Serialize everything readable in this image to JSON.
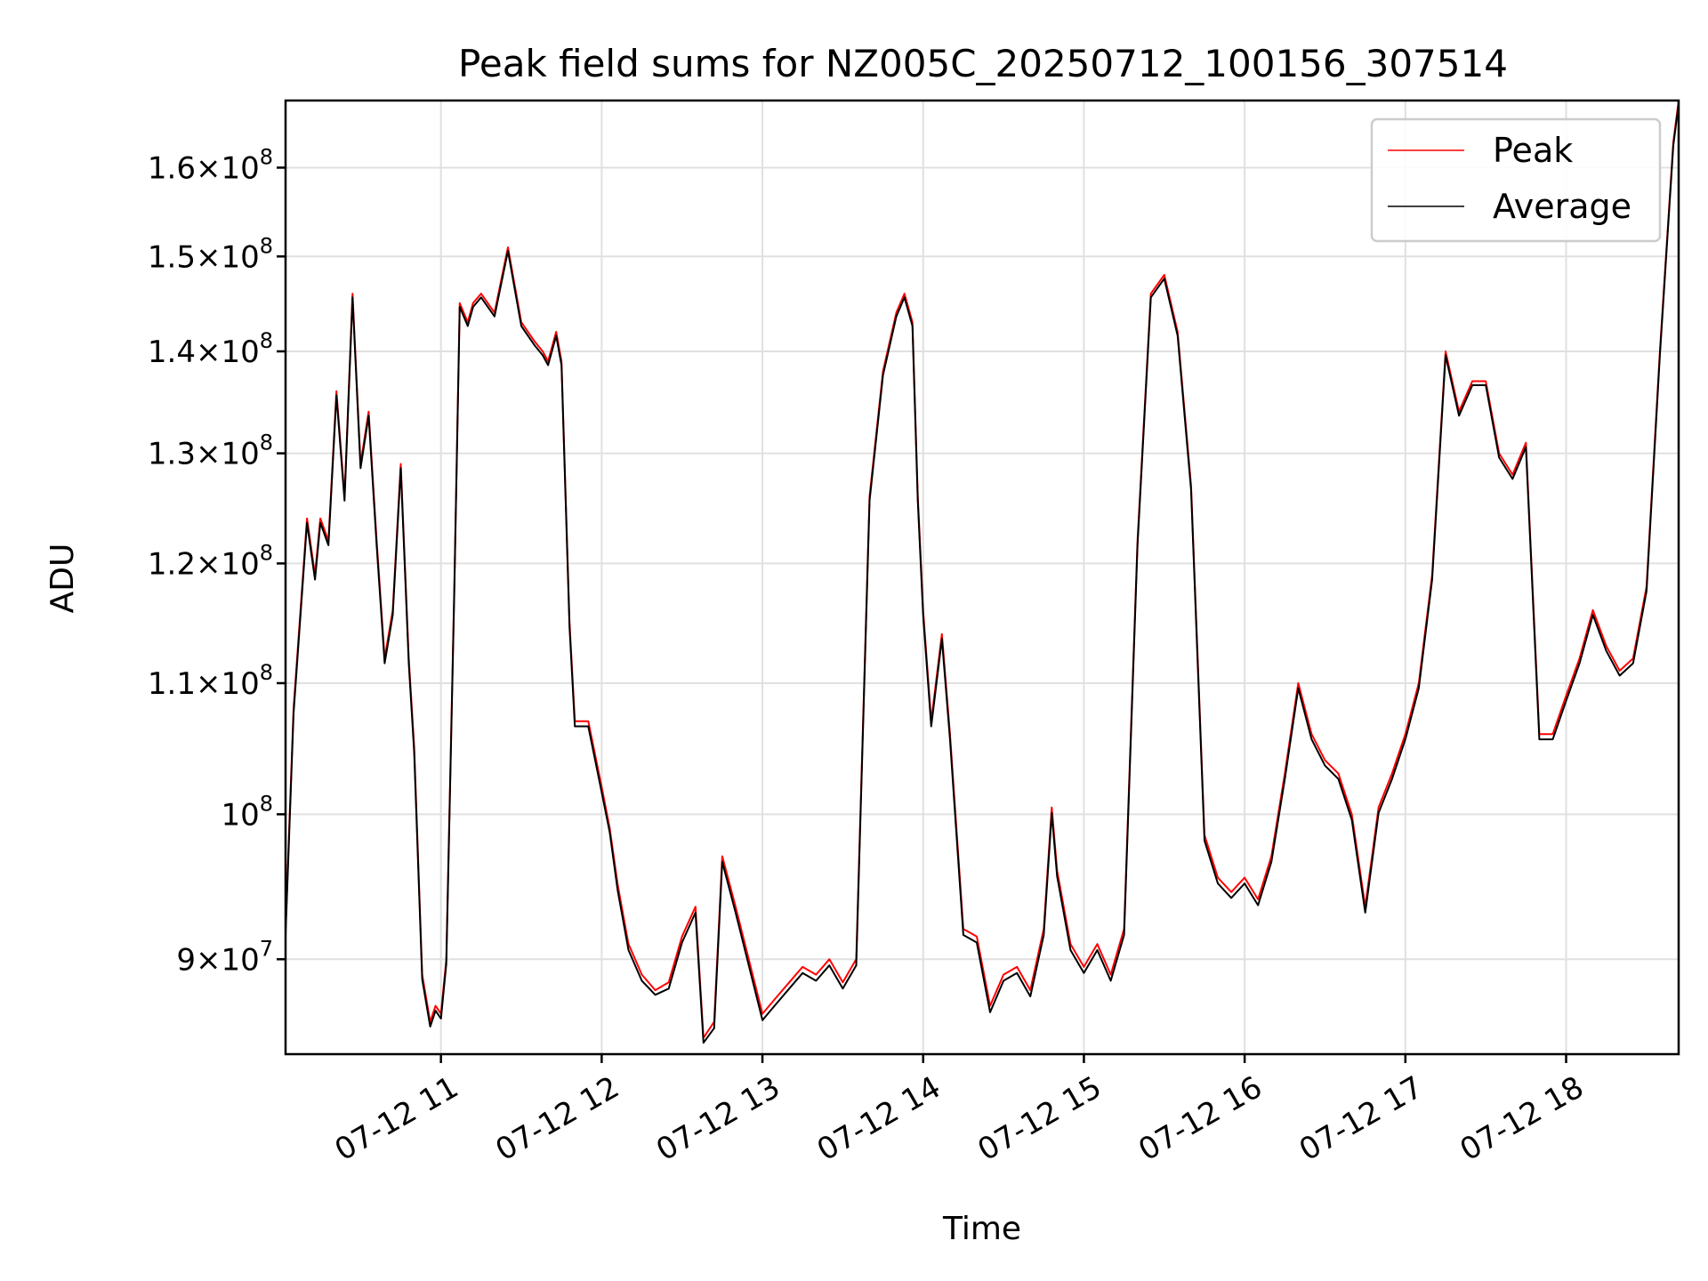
{
  "chart_data": {
    "type": "line",
    "title": "Peak field sums for NZ005C_20250712_100156_307514",
    "xlabel": "Time",
    "ylabel": "ADU",
    "yscale": "log",
    "xlim": [
      "2025-07-12 10:02",
      "2025-07-12 18:42"
    ],
    "ylim": [
      84000000,
      168000000
    ],
    "grid": true,
    "legend_position": "top-right",
    "x_ticks": [
      {
        "value": "2025-07-12 11:00",
        "label": "07-12 11"
      },
      {
        "value": "2025-07-12 12:00",
        "label": "07-12 12"
      },
      {
        "value": "2025-07-12 13:00",
        "label": "07-12 13"
      },
      {
        "value": "2025-07-12 14:00",
        "label": "07-12 14"
      },
      {
        "value": "2025-07-12 15:00",
        "label": "07-12 15"
      },
      {
        "value": "2025-07-12 16:00",
        "label": "07-12 16"
      },
      {
        "value": "2025-07-12 17:00",
        "label": "07-12 17"
      },
      {
        "value": "2025-07-12 18:00",
        "label": "07-12 18"
      }
    ],
    "y_ticks": [
      {
        "value": 90000000,
        "mant": "9",
        "exp": "7"
      },
      {
        "value": 100000000,
        "mant": "",
        "exp": "8"
      },
      {
        "value": 110000000,
        "mant": "1.1",
        "exp": "8"
      },
      {
        "value": 120000000,
        "mant": "1.2",
        "exp": "8"
      },
      {
        "value": 130000000,
        "mant": "1.3",
        "exp": "8"
      },
      {
        "value": 140000000,
        "mant": "1.4",
        "exp": "8"
      },
      {
        "value": 150000000,
        "mant": "1.5",
        "exp": "8"
      },
      {
        "value": 160000000,
        "mant": "1.6",
        "exp": "8"
      }
    ],
    "x": [
      "2025-07-12 10:02",
      "2025-07-12 10:05",
      "2025-07-12 10:10",
      "2025-07-12 10:13",
      "2025-07-12 10:15",
      "2025-07-12 10:18",
      "2025-07-12 10:21",
      "2025-07-12 10:24",
      "2025-07-12 10:27",
      "2025-07-12 10:30",
      "2025-07-12 10:33",
      "2025-07-12 10:36",
      "2025-07-12 10:39",
      "2025-07-12 10:42",
      "2025-07-12 10:45",
      "2025-07-12 10:48",
      "2025-07-12 10:50",
      "2025-07-12 10:53",
      "2025-07-12 10:56",
      "2025-07-12 10:58",
      "2025-07-12 11:00",
      "2025-07-12 11:02",
      "2025-07-12 11:05",
      "2025-07-12 11:07",
      "2025-07-12 11:10",
      "2025-07-12 11:12",
      "2025-07-12 11:15",
      "2025-07-12 11:20",
      "2025-07-12 11:25",
      "2025-07-12 11:30",
      "2025-07-12 11:35",
      "2025-07-12 11:38",
      "2025-07-12 11:40",
      "2025-07-12 11:43",
      "2025-07-12 11:45",
      "2025-07-12 11:48",
      "2025-07-12 11:50",
      "2025-07-12 11:55",
      "2025-07-12 12:00",
      "2025-07-12 12:03",
      "2025-07-12 12:06",
      "2025-07-12 12:10",
      "2025-07-12 12:15",
      "2025-07-12 12:20",
      "2025-07-12 12:25",
      "2025-07-12 12:30",
      "2025-07-12 12:35",
      "2025-07-12 12:38",
      "2025-07-12 12:42",
      "2025-07-12 12:45",
      "2025-07-12 12:50",
      "2025-07-12 13:00",
      "2025-07-12 13:05",
      "2025-07-12 13:10",
      "2025-07-12 13:15",
      "2025-07-12 13:20",
      "2025-07-12 13:25",
      "2025-07-12 13:30",
      "2025-07-12 13:35",
      "2025-07-12 13:40",
      "2025-07-12 13:45",
      "2025-07-12 13:50",
      "2025-07-12 13:53",
      "2025-07-12 13:56",
      "2025-07-12 13:58",
      "2025-07-12 14:00",
      "2025-07-12 14:03",
      "2025-07-12 14:07",
      "2025-07-12 14:10",
      "2025-07-12 14:15",
      "2025-07-12 14:20",
      "2025-07-12 14:25",
      "2025-07-12 14:30",
      "2025-07-12 14:35",
      "2025-07-12 14:40",
      "2025-07-12 14:45",
      "2025-07-12 14:48",
      "2025-07-12 14:50",
      "2025-07-12 14:55",
      "2025-07-12 15:00",
      "2025-07-12 15:05",
      "2025-07-12 15:10",
      "2025-07-12 15:15",
      "2025-07-12 15:20",
      "2025-07-12 15:25",
      "2025-07-12 15:30",
      "2025-07-12 15:35",
      "2025-07-12 15:40",
      "2025-07-12 15:45",
      "2025-07-12 15:50",
      "2025-07-12 15:55",
      "2025-07-12 16:00",
      "2025-07-12 16:05",
      "2025-07-12 16:10",
      "2025-07-12 16:15",
      "2025-07-12 16:20",
      "2025-07-12 16:25",
      "2025-07-12 16:30",
      "2025-07-12 16:35",
      "2025-07-12 16:40",
      "2025-07-12 16:45",
      "2025-07-12 16:50",
      "2025-07-12 16:55",
      "2025-07-12 17:00",
      "2025-07-12 17:05",
      "2025-07-12 17:10",
      "2025-07-12 17:15",
      "2025-07-12 17:20",
      "2025-07-12 17:25",
      "2025-07-12 17:30",
      "2025-07-12 17:35",
      "2025-07-12 17:40",
      "2025-07-12 17:45",
      "2025-07-12 17:50",
      "2025-07-12 17:55",
      "2025-07-12 18:00",
      "2025-07-12 18:05",
      "2025-07-12 18:10",
      "2025-07-12 18:15",
      "2025-07-12 18:20",
      "2025-07-12 18:25",
      "2025-07-12 18:30",
      "2025-07-12 18:35",
      "2025-07-12 18:40",
      "2025-07-12 18:42"
    ],
    "series": [
      {
        "name": "Peak",
        "color": "#ff0000",
        "values": [
          92000000,
          108000000,
          124000000,
          119000000,
          124000000,
          122000000,
          136000000,
          126000000,
          146000000,
          129000000,
          134000000,
          122000000,
          112000000,
          116000000,
          129000000,
          112000000,
          105000000,
          89000000,
          86000000,
          87000000,
          86500000,
          90000000,
          118000000,
          145000000,
          143000000,
          145000000,
          146000000,
          144000000,
          151000000,
          143000000,
          141000000,
          140000000,
          139000000,
          142000000,
          139000000,
          115000000,
          107000000,
          107000000,
          102000000,
          99000000,
          95000000,
          91000000,
          89000000,
          88000000,
          88500000,
          91500000,
          93500000,
          85000000,
          86000000,
          97000000,
          93500000,
          86500000,
          87500000,
          88500000,
          89500000,
          89000000,
          90000000,
          88500000,
          90000000,
          126000000,
          138000000,
          144000000,
          146000000,
          143000000,
          126000000,
          116000000,
          107000000,
          114000000,
          106000000,
          92000000,
          91500000,
          87000000,
          89000000,
          89500000,
          88000000,
          92000000,
          100500000,
          96000000,
          91000000,
          89500000,
          91000000,
          89000000,
          92000000,
          122000000,
          146000000,
          148000000,
          142000000,
          127000000,
          98500000,
          95500000,
          94500000,
          95500000,
          94000000,
          97000000,
          103000000,
          110000000,
          106000000,
          104000000,
          103000000,
          100000000,
          93500000,
          100500000,
          103000000,
          106000000,
          110000000,
          119000000,
          140000000,
          134000000,
          137000000,
          137000000,
          130000000,
          128000000,
          131000000,
          106000000,
          106000000,
          109000000,
          112000000,
          116000000,
          113000000,
          111000000,
          112000000,
          118000000,
          140000000,
          163000000,
          168000000
        ]
      },
      {
        "name": "Average",
        "color": "#000000",
        "values": [
          91600000,
          107600000,
          123600000,
          118600000,
          123600000,
          121600000,
          135600000,
          125600000,
          145600000,
          128600000,
          133600000,
          121600000,
          111600000,
          115600000,
          128600000,
          111600000,
          104600000,
          88700000,
          85700000,
          86700000,
          86200000,
          89700000,
          117600000,
          144600000,
          142600000,
          144600000,
          145600000,
          143600000,
          150600000,
          142600000,
          140600000,
          139600000,
          138600000,
          141600000,
          138600000,
          114600000,
          106600000,
          106600000,
          101600000,
          98700000,
          94600000,
          90600000,
          88600000,
          87700000,
          88100000,
          91100000,
          93100000,
          84700000,
          85600000,
          96600000,
          93100000,
          86100000,
          87100000,
          88100000,
          89100000,
          88600000,
          89600000,
          88100000,
          89600000,
          125600000,
          137600000,
          143600000,
          145600000,
          142600000,
          125600000,
          115600000,
          106600000,
          113600000,
          105600000,
          91600000,
          91100000,
          86600000,
          88600000,
          89100000,
          87600000,
          91600000,
          100100000,
          95600000,
          90600000,
          89100000,
          90600000,
          88600000,
          91600000,
          121600000,
          145600000,
          147600000,
          141600000,
          126600000,
          98100000,
          95100000,
          94100000,
          95100000,
          93600000,
          96600000,
          102600000,
          109600000,
          105600000,
          103600000,
          102600000,
          99600000,
          93100000,
          100100000,
          102600000,
          105600000,
          109600000,
          118600000,
          139600000,
          133600000,
          136600000,
          136600000,
          129600000,
          127600000,
          130600000,
          105600000,
          105600000,
          108600000,
          111600000,
          115600000,
          112600000,
          110600000,
          111600000,
          117600000,
          139600000,
          162600000,
          167600000
        ]
      }
    ]
  }
}
